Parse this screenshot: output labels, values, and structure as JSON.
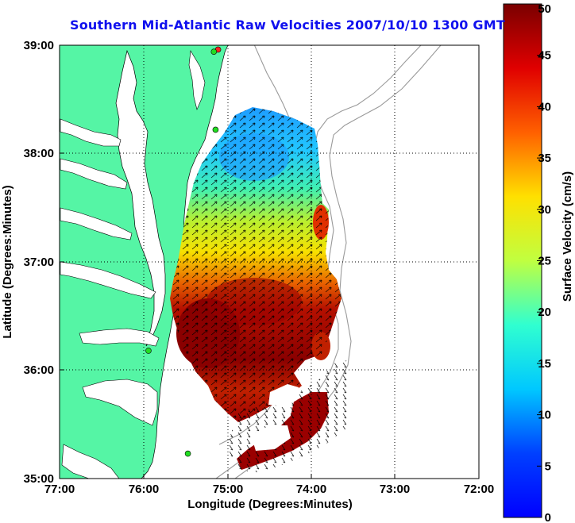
{
  "title": "Southern Mid-Atlantic Raw Velocities 2007/10/10 1300 GMT",
  "xlabel": "Longitude (Degrees:Minutes)",
  "ylabel": "Latitude (Degrees:Minutes)",
  "colorbar_label": "Surface Velocity (cm/s)",
  "x_ticks": [
    "77:00",
    "76:00",
    "75:00",
    "74:00",
    "73:00",
    "72:00"
  ],
  "y_ticks": [
    "39:00",
    "38:00",
    "37:00",
    "36:00",
    "35:00"
  ],
  "colorbar_ticks": [
    "50",
    "45",
    "40",
    "35",
    "30",
    "25",
    "20",
    "15",
    "10",
    "5",
    "0"
  ],
  "colors": {
    "land": "#55f5a5",
    "title": "#1010ee",
    "grid": "#000000",
    "bathymetry": "#9a9a9a",
    "station": "#22dd22",
    "station_active": "#ff2222"
  },
  "map_extent": {
    "lon_min": -77,
    "lon_max": -72,
    "lat_min": 35,
    "lat_max": 39
  },
  "colorbar_range": [
    0,
    50
  ],
  "stations": [
    {
      "lon": -75.11,
      "lat": 38.96,
      "active": true
    },
    {
      "lon": -75.16,
      "lat": 38.94,
      "active": false
    },
    {
      "lon": -75.14,
      "lat": 38.22,
      "active": false
    },
    {
      "lon": -75.94,
      "lat": 36.18,
      "active": false
    },
    {
      "lon": -75.47,
      "lat": 35.23,
      "active": false
    }
  ]
}
